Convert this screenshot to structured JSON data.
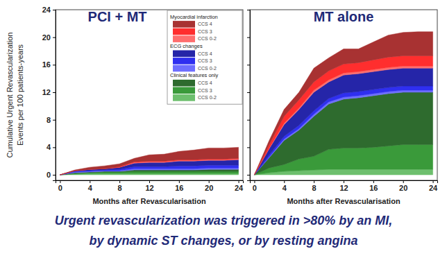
{
  "chart_data": [
    {
      "type": "area",
      "title": "PCI + MT",
      "stacked": true,
      "legend": "top-right",
      "x_label": "Months after Revascularisation",
      "y_label": [
        "Cumulative Urgent Revascularization",
        "Events per 100 patients-years"
      ],
      "xlim": [
        -0.6,
        24.6
      ],
      "ylim": [
        -0.8,
        24
      ],
      "xticks": [
        0,
        4,
        8,
        12,
        16,
        20,
        24
      ],
      "yticks": [
        0,
        4,
        8,
        12,
        16,
        20,
        24
      ],
      "x": [
        0,
        2,
        4,
        6,
        8,
        10,
        12,
        14,
        16,
        18,
        20,
        22,
        24
      ],
      "series": [
        {
          "name": "CCS 4",
          "group": "Myocardial infarction",
          "color": "#a83232",
          "values": [
            0,
            0.1,
            0.3,
            0.4,
            0.4,
            0.5,
            0.9,
            1.0,
            1.2,
            1.4,
            1.6,
            1.6,
            1.6
          ]
        },
        {
          "name": "CCS 3",
          "group": "Myocardial infarction",
          "color": "#ff2e2e",
          "values": [
            0,
            0,
            0,
            0,
            0.1,
            0.1,
            0.1,
            0.1,
            0.1,
            0.1,
            0.1,
            0.1,
            0.1
          ]
        },
        {
          "name": "CCS 0-2",
          "group": "Myocardial infarction",
          "color": "#ff6e6e",
          "values": [
            0,
            0,
            0,
            0,
            0,
            0.1,
            0.1,
            0.1,
            0.1,
            0.1,
            0.1,
            0.1,
            0.1
          ]
        },
        {
          "name": "CCS 4",
          "group": "ECG changes",
          "color": "#2525a8",
          "values": [
            0,
            0.1,
            0.2,
            0.2,
            0.3,
            0.5,
            0.6,
            0.6,
            0.7,
            0.7,
            0.7,
            0.7,
            0.8
          ]
        },
        {
          "name": "CCS 3",
          "group": "ECG changes",
          "color": "#2f2ff0",
          "values": [
            0,
            0.1,
            0.1,
            0.1,
            0.2,
            0.3,
            0.3,
            0.3,
            0.4,
            0.4,
            0.4,
            0.4,
            0.4
          ]
        },
        {
          "name": "CCS 0-2",
          "group": "ECG changes",
          "color": "#6e6eff",
          "values": [
            0,
            0.1,
            0.1,
            0.1,
            0.1,
            0.2,
            0.2,
            0.2,
            0.2,
            0.2,
            0.2,
            0.2,
            0.2
          ]
        },
        {
          "name": "CCS 4",
          "group": "Clinical features only",
          "color": "#2e6b2e",
          "values": [
            0,
            0.1,
            0.1,
            0.1,
            0.1,
            0.2,
            0.2,
            0.2,
            0.2,
            0.2,
            0.3,
            0.3,
            0.3
          ]
        },
        {
          "name": "CCS 3",
          "group": "Clinical features only",
          "color": "#3a9a3a",
          "values": [
            0,
            0.1,
            0.1,
            0.2,
            0.2,
            0.3,
            0.3,
            0.3,
            0.3,
            0.3,
            0.3,
            0.3,
            0.3
          ]
        },
        {
          "name": "CCS 0-2",
          "group": "Clinical features only",
          "color": "#6dbf6d",
          "values": [
            0,
            0.1,
            0.2,
            0.2,
            0.2,
            0.2,
            0.2,
            0.2,
            0.2,
            0.2,
            0.2,
            0.2,
            0.2
          ]
        }
      ]
    },
    {
      "type": "area",
      "title": "MT alone",
      "stacked": true,
      "tick_labels": "x",
      "x_label": "Months after Revascularisation",
      "xlim": [
        -0.6,
        24.6
      ],
      "ylim": [
        -0.8,
        24
      ],
      "xticks": [
        0,
        4,
        8,
        12,
        16,
        20,
        24
      ],
      "yticks": [
        0,
        4,
        8,
        12,
        16,
        20,
        24
      ],
      "x": [
        0,
        2,
        4,
        6,
        8,
        10,
        12,
        14,
        16,
        18,
        20,
        22,
        24
      ],
      "series": [
        {
          "name": "CCS 4",
          "color": "#a83232",
          "values": [
            0,
            0.6,
            1.0,
            1.1,
            2.0,
            1.9,
            2.2,
            2.0,
            2.6,
            3.2,
            3.4,
            3.5,
            3.5
          ]
        },
        {
          "name": "CCS 3",
          "color": "#ff2e2e",
          "values": [
            0,
            0.5,
            1.0,
            1.2,
            1.2,
            1.3,
            1.3,
            1.3,
            1.4,
            1.5,
            1.5,
            1.5,
            1.5
          ]
        },
        {
          "name": "CCS 0-2",
          "color": "#ff6e6e",
          "values": [
            0,
            0.1,
            0.2,
            0.2,
            0.3,
            0.3,
            0.3,
            0.3,
            0.3,
            0.3,
            0.3,
            0.3,
            0.3
          ]
        },
        {
          "name": "CCS 4",
          "color": "#2525a8",
          "values": [
            0,
            0.9,
            1.7,
            2.3,
            2.7,
            2.4,
            2.6,
            2.6,
            2.6,
            2.6,
            2.6,
            2.6,
            2.6
          ]
        },
        {
          "name": "CCS 3",
          "color": "#2f2ff0",
          "values": [
            0,
            0.3,
            0.4,
            0.5,
            0.5,
            0.5,
            0.6,
            0.6,
            0.6,
            0.6,
            0.6,
            0.6,
            0.6
          ]
        },
        {
          "name": "CCS 0-2",
          "color": "#6e6eff",
          "values": [
            0,
            0.1,
            0.2,
            0.2,
            0.3,
            0.3,
            0.3,
            0.3,
            0.3,
            0.3,
            0.3,
            0.3,
            0.3
          ]
        },
        {
          "name": "CCS 4",
          "color": "#2e6b2e",
          "values": [
            0,
            1.5,
            3.5,
            4.2,
            5.8,
            6.6,
            7.1,
            7.3,
            7.5,
            7.6,
            7.6,
            7.6,
            7.6
          ]
        },
        {
          "name": "CCS 3",
          "color": "#3a9a3a",
          "values": [
            0,
            0.7,
            1.0,
            1.7,
            2.0,
            2.9,
            3.1,
            3.1,
            3.2,
            3.4,
            3.6,
            3.6,
            3.6
          ]
        },
        {
          "name": "CCS 0-2",
          "color": "#6dbf6d",
          "values": [
            0,
            0.3,
            0.5,
            0.6,
            0.7,
            0.8,
            0.8,
            0.8,
            0.8,
            0.8,
            0.8,
            0.8,
            0.8
          ]
        }
      ]
    }
  ],
  "caption": [
    "Urgent revascularization was triggered in >80% by an MI,",
    "by dynamic ST changes, or by resting angina"
  ]
}
